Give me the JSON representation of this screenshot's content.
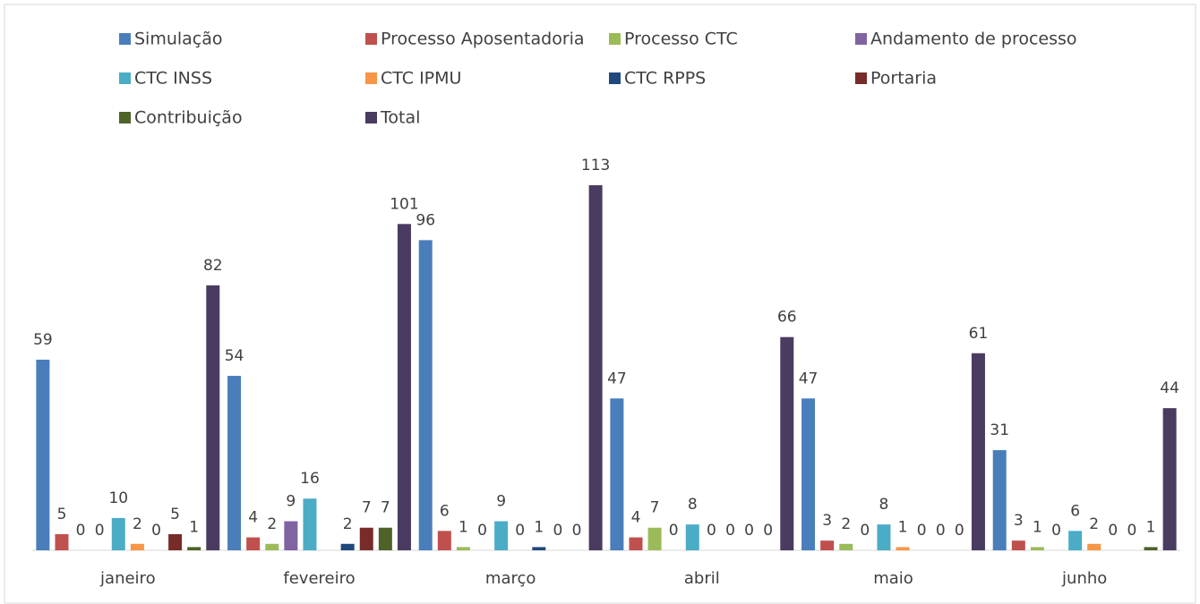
{
  "chart_data": {
    "type": "bar",
    "categories": [
      "janeiro",
      "fevereiro",
      "março",
      "abril",
      "maio",
      "junho"
    ],
    "series": [
      {
        "name": "Simulação",
        "color": "#4a7ebb",
        "values": [
          59,
          54,
          96,
          47,
          47,
          31
        ]
      },
      {
        "name": "Processo Aposentadoria",
        "color": "#c0504d",
        "values": [
          5,
          4,
          6,
          4,
          3,
          3
        ]
      },
      {
        "name": "Processo CTC",
        "color": "#9bbb59",
        "values": [
          0,
          2,
          1,
          7,
          2,
          1
        ]
      },
      {
        "name": "Andamento de processo",
        "color": "#8064a2",
        "values": [
          0,
          9,
          0,
          0,
          0,
          0
        ]
      },
      {
        "name": "CTC INSS",
        "color": "#4bacc6",
        "values": [
          10,
          16,
          9,
          8,
          8,
          6
        ]
      },
      {
        "name": "CTC IPMU",
        "color": "#f79646",
        "values": [
          2,
          null,
          0,
          0,
          1,
          2
        ]
      },
      {
        "name": "CTC RPPS",
        "color": "#1f497d",
        "values": [
          0,
          2,
          1,
          0,
          0,
          0
        ]
      },
      {
        "name": "Portaria",
        "color": "#772c2a",
        "values": [
          5,
          7,
          0,
          0,
          0,
          0
        ]
      },
      {
        "name": "Contribuição",
        "color": "#4f6228",
        "values": [
          1,
          7,
          0,
          0,
          0,
          1
        ]
      },
      {
        "name": "Total",
        "color": "#4a3b60",
        "values": [
          82,
          101,
          113,
          66,
          61,
          44
        ]
      }
    ],
    "legend": "top"
  }
}
